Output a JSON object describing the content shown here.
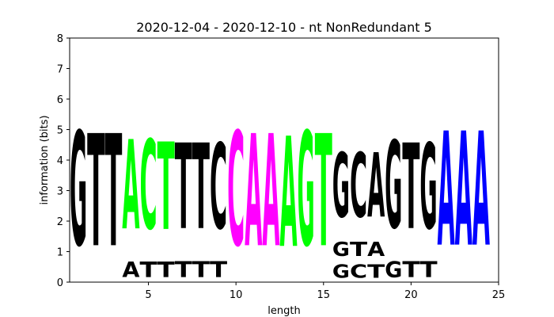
{
  "chart_data": {
    "type": "sequence-logo",
    "title": "2020-12-04 - 2020-12-10 - nt NonRedundant 5",
    "xlabel": "length",
    "ylabel": "information (bits)",
    "xlim": [
      0.5,
      25
    ],
    "ylim": [
      0,
      8
    ],
    "xticks": [
      5,
      10,
      15,
      20,
      25
    ],
    "yticks": [
      0,
      1,
      2,
      3,
      4,
      5,
      6,
      7,
      8
    ],
    "grid": false,
    "colors": {
      "A": "#0000ff",
      "C": "#ff00ff",
      "G": "#00ff00",
      "T": "#000000"
    },
    "stacks": [
      {
        "pos": 1,
        "letters": [
          {
            "base": "G",
            "bits": 6.0,
            "color": "#000000"
          }
        ]
      },
      {
        "pos": 2,
        "letters": [
          {
            "base": "T",
            "bits": 5.9,
            "color": "#000000"
          }
        ]
      },
      {
        "pos": 3,
        "letters": [
          {
            "base": "T",
            "bits": 5.9,
            "color": "#000000"
          }
        ]
      },
      {
        "pos": 4,
        "letters": [
          {
            "base": "A",
            "bits": 0.8,
            "color": "#000000"
          },
          {
            "base": "A",
            "bits": 4.7,
            "color": "#00ff00"
          }
        ]
      },
      {
        "pos": 5,
        "letters": [
          {
            "base": "T",
            "bits": 0.8,
            "color": "#000000"
          },
          {
            "base": "C",
            "bits": 4.7,
            "color": "#00ff00"
          }
        ]
      },
      {
        "pos": 6,
        "letters": [
          {
            "base": "T",
            "bits": 0.8,
            "color": "#000000"
          },
          {
            "base": "T",
            "bits": 4.6,
            "color": "#00ff00"
          }
        ]
      },
      {
        "pos": 7,
        "letters": [
          {
            "base": "T",
            "bits": 0.85,
            "color": "#000000"
          },
          {
            "base": "T",
            "bits": 4.5,
            "color": "#000000"
          }
        ]
      },
      {
        "pos": 8,
        "letters": [
          {
            "base": "T",
            "bits": 0.85,
            "color": "#000000"
          },
          {
            "base": "T",
            "bits": 4.5,
            "color": "#000000"
          }
        ]
      },
      {
        "pos": 9,
        "letters": [
          {
            "base": "T",
            "bits": 0.85,
            "color": "#000000"
          },
          {
            "base": "C",
            "bits": 4.5,
            "color": "#000000"
          }
        ]
      },
      {
        "pos": 10,
        "letters": [
          {
            "base": "C",
            "bits": 6.0,
            "color": "#ff00ff"
          }
        ]
      },
      {
        "pos": 11,
        "letters": [
          {
            "base": "A",
            "bits": 5.9,
            "color": "#ff00ff"
          }
        ]
      },
      {
        "pos": 12,
        "letters": [
          {
            "base": "A",
            "bits": 5.9,
            "color": "#ff00ff"
          }
        ]
      },
      {
        "pos": 13,
        "letters": [
          {
            "base": "A",
            "bits": 5.8,
            "color": "#00ff00"
          }
        ]
      },
      {
        "pos": 14,
        "letters": [
          {
            "base": "G",
            "bits": 6.0,
            "color": "#00ff00"
          }
        ]
      },
      {
        "pos": 15,
        "letters": [
          {
            "base": "T",
            "bits": 5.9,
            "color": "#00ff00"
          }
        ]
      },
      {
        "pos": 16,
        "letters": [
          {
            "base": "G",
            "bits": 0.7,
            "color": "#000000"
          },
          {
            "base": "G",
            "bits": 0.75,
            "color": "#000000"
          },
          {
            "base": "G",
            "bits": 3.4,
            "color": "#000000"
          }
        ]
      },
      {
        "pos": 17,
        "letters": [
          {
            "base": "C",
            "bits": 0.7,
            "color": "#000000"
          },
          {
            "base": "T",
            "bits": 0.75,
            "color": "#000000"
          },
          {
            "base": "C",
            "bits": 3.4,
            "color": "#000000"
          }
        ]
      },
      {
        "pos": 18,
        "letters": [
          {
            "base": "T",
            "bits": 0.7,
            "color": "#000000"
          },
          {
            "base": "A",
            "bits": 0.75,
            "color": "#000000"
          },
          {
            "base": "A",
            "bits": 3.4,
            "color": "#000000"
          }
        ]
      },
      {
        "pos": 19,
        "letters": [
          {
            "base": "G",
            "bits": 0.85,
            "color": "#000000"
          },
          {
            "base": "G",
            "bits": 4.6,
            "color": "#000000"
          }
        ]
      },
      {
        "pos": 20,
        "letters": [
          {
            "base": "T",
            "bits": 0.85,
            "color": "#000000"
          },
          {
            "base": "T",
            "bits": 4.5,
            "color": "#000000"
          }
        ]
      },
      {
        "pos": 21,
        "letters": [
          {
            "base": "T",
            "bits": 0.85,
            "color": "#000000"
          },
          {
            "base": "G",
            "bits": 4.5,
            "color": "#000000"
          }
        ]
      },
      {
        "pos": 22,
        "letters": [
          {
            "base": "A",
            "bits": 6.0,
            "color": "#0000ff"
          }
        ]
      },
      {
        "pos": 23,
        "letters": [
          {
            "base": "A",
            "bits": 6.0,
            "color": "#0000ff"
          }
        ]
      },
      {
        "pos": 24,
        "letters": [
          {
            "base": "A",
            "bits": 6.0,
            "color": "#0000ff"
          }
        ]
      }
    ]
  }
}
